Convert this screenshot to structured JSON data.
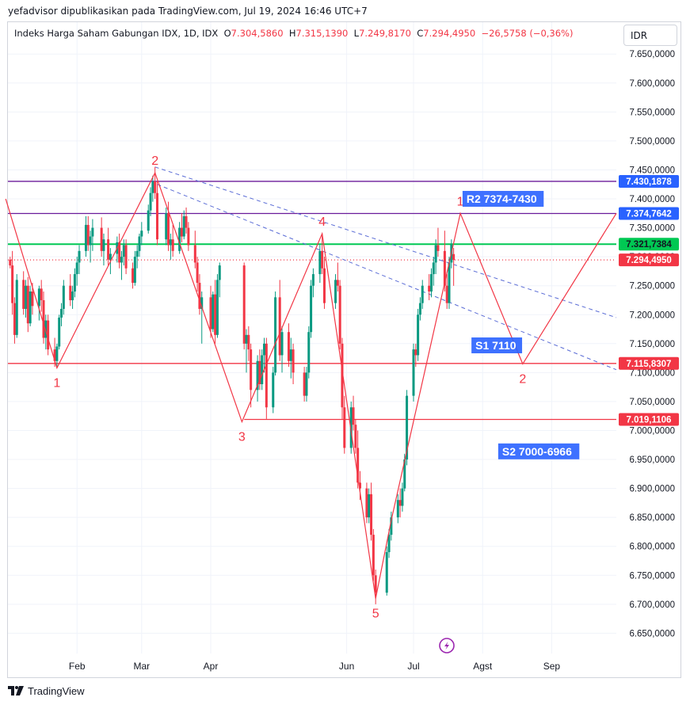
{
  "publisher_line": "yefadvisor dipublikasikan pada TradingView.com, Jul 19, 2024 16:46 UTC+7",
  "legend": {
    "title": "Indeks Harga Saham Gabungan IDX, 1D, IDX",
    "o_label": "O",
    "o_value": "7.304,5860",
    "h_label": "H",
    "h_value": "7.315,1390",
    "l_label": "L",
    "l_value": "7.249,8170",
    "c_label": "C",
    "c_value": "7.294,4950",
    "change": "−26,5758 (−0,36%)"
  },
  "currency_button": "IDR",
  "footer_brand": "TradingView",
  "colors": {
    "up": "#089981",
    "down": "#f23645",
    "wave": "#f23645",
    "resistance": "#2962ff",
    "purple": "#6a1b9a",
    "support_green": "#00c853",
    "support_red": "#f23645",
    "dashed_trend": "#5b6dd6"
  },
  "chart_data": {
    "type": "candlestick",
    "title": "Indeks Harga Saham Gabungan IDX, 1D, IDX",
    "xlabel": "",
    "ylabel": "",
    "x_ticks": [
      "Feb",
      "Mar",
      "Apr",
      "Jun",
      "Jul",
      "Agst",
      "Sep"
    ],
    "y_ticks": [
      "7.650,0000",
      "7.600,0000",
      "7.550,0000",
      "7.500,0000",
      "7.450,0000",
      "7.400,0000",
      "7.350,0000",
      "7.300,0000",
      "7.250,0000",
      "7.200,0000",
      "7.150,0000",
      "7.100,0000",
      "7.050,0000",
      "7.000,0000",
      "6.950,0000",
      "6.900,0000",
      "6.850,0000",
      "6.800,0000",
      "6.750,0000",
      "6.700,0000",
      "6.650,0000"
    ],
    "ylim": [
      6615,
      7705
    ],
    "x_range": [
      "2024-01-01",
      "2024-09-30"
    ],
    "grid": true,
    "candles": [
      {
        "d": "2024-01-02",
        "o": 7295,
        "h": 7300,
        "l": 7280,
        "c": 7285
      },
      {
        "d": "2024-01-03",
        "o": 7285,
        "h": 7310,
        "l": 7200,
        "c": 7220
      },
      {
        "d": "2024-01-04",
        "o": 7220,
        "h": 7230,
        "l": 7150,
        "c": 7165
      },
      {
        "d": "2024-01-05",
        "o": 7165,
        "h": 7270,
        "l": 7160,
        "c": 7260
      },
      {
        "d": "2024-01-08",
        "o": 7260,
        "h": 7275,
        "l": 7200,
        "c": 7210
      },
      {
        "d": "2024-01-09",
        "o": 7210,
        "h": 7260,
        "l": 7195,
        "c": 7250
      },
      {
        "d": "2024-01-10",
        "o": 7250,
        "h": 7265,
        "l": 7170,
        "c": 7185
      },
      {
        "d": "2024-01-11",
        "o": 7185,
        "h": 7250,
        "l": 7180,
        "c": 7240
      },
      {
        "d": "2024-01-12",
        "o": 7240,
        "h": 7255,
        "l": 7200,
        "c": 7215
      },
      {
        "d": "2024-01-15",
        "o": 7215,
        "h": 7250,
        "l": 7190,
        "c": 7245
      },
      {
        "d": "2024-01-16",
        "o": 7245,
        "h": 7260,
        "l": 7205,
        "c": 7225
      },
      {
        "d": "2024-01-17",
        "o": 7225,
        "h": 7240,
        "l": 7150,
        "c": 7160
      },
      {
        "d": "2024-01-18",
        "o": 7160,
        "h": 7200,
        "l": 7140,
        "c": 7190
      },
      {
        "d": "2024-01-19",
        "o": 7190,
        "h": 7200,
        "l": 7130,
        "c": 7140
      },
      {
        "d": "2024-01-22",
        "o": 7140,
        "h": 7160,
        "l": 7110,
        "c": 7120
      },
      {
        "d": "2024-01-23",
        "o": 7120,
        "h": 7150,
        "l": 7108,
        "c": 7145
      },
      {
        "d": "2024-01-24",
        "o": 7145,
        "h": 7200,
        "l": 7140,
        "c": 7195
      },
      {
        "d": "2024-01-25",
        "o": 7195,
        "h": 7220,
        "l": 7180,
        "c": 7210
      },
      {
        "d": "2024-01-26",
        "o": 7210,
        "h": 7260,
        "l": 7200,
        "c": 7250
      },
      {
        "d": "2024-01-29",
        "o": 7250,
        "h": 7270,
        "l": 7215,
        "c": 7225
      },
      {
        "d": "2024-01-30",
        "o": 7225,
        "h": 7250,
        "l": 7210,
        "c": 7240
      },
      {
        "d": "2024-01-31",
        "o": 7240,
        "h": 7280,
        "l": 7230,
        "c": 7270
      },
      {
        "d": "2024-02-01",
        "o": 7270,
        "h": 7300,
        "l": 7250,
        "c": 7290
      },
      {
        "d": "2024-02-02",
        "o": 7290,
        "h": 7320,
        "l": 7270,
        "c": 7310
      },
      {
        "d": "2024-02-05",
        "o": 7310,
        "h": 7370,
        "l": 7300,
        "c": 7355
      },
      {
        "d": "2024-02-06",
        "o": 7355,
        "h": 7370,
        "l": 7310,
        "c": 7320
      },
      {
        "d": "2024-02-07",
        "o": 7320,
        "h": 7345,
        "l": 7290,
        "c": 7335
      },
      {
        "d": "2024-02-08",
        "o": 7335,
        "h": 7365,
        "l": 7310,
        "c": 7350
      },
      {
        "d": "2024-02-12",
        "o": 7350,
        "h": 7368,
        "l": 7300,
        "c": 7310
      },
      {
        "d": "2024-02-13",
        "o": 7310,
        "h": 7340,
        "l": 7285,
        "c": 7330
      },
      {
        "d": "2024-02-15",
        "o": 7330,
        "h": 7350,
        "l": 7285,
        "c": 7295
      },
      {
        "d": "2024-02-16",
        "o": 7295,
        "h": 7315,
        "l": 7270,
        "c": 7305
      },
      {
        "d": "2024-02-19",
        "o": 7305,
        "h": 7335,
        "l": 7290,
        "c": 7325
      },
      {
        "d": "2024-02-20",
        "o": 7325,
        "h": 7340,
        "l": 7280,
        "c": 7290
      },
      {
        "d": "2024-02-21",
        "o": 7290,
        "h": 7310,
        "l": 7260,
        "c": 7300
      },
      {
        "d": "2024-02-22",
        "o": 7300,
        "h": 7330,
        "l": 7285,
        "c": 7320
      },
      {
        "d": "2024-02-23",
        "o": 7320,
        "h": 7330,
        "l": 7270,
        "c": 7280
      },
      {
        "d": "2024-02-26",
        "o": 7280,
        "h": 7290,
        "l": 7245,
        "c": 7255
      },
      {
        "d": "2024-02-27",
        "o": 7255,
        "h": 7310,
        "l": 7250,
        "c": 7300
      },
      {
        "d": "2024-02-28",
        "o": 7300,
        "h": 7320,
        "l": 7280,
        "c": 7310
      },
      {
        "d": "2024-02-29",
        "o": 7310,
        "h": 7340,
        "l": 7300,
        "c": 7335
      },
      {
        "d": "2024-03-01",
        "o": 7335,
        "h": 7360,
        "l": 7320,
        "c": 7345
      },
      {
        "d": "2024-03-04",
        "o": 7345,
        "h": 7390,
        "l": 7340,
        "c": 7380
      },
      {
        "d": "2024-03-05",
        "o": 7380,
        "h": 7420,
        "l": 7370,
        "c": 7410
      },
      {
        "d": "2024-03-06",
        "o": 7410,
        "h": 7440,
        "l": 7395,
        "c": 7430
      },
      {
        "d": "2024-03-07",
        "o": 7430,
        "h": 7455,
        "l": 7400,
        "c": 7410
      },
      {
        "d": "2024-03-08",
        "o": 7410,
        "h": 7430,
        "l": 7320,
        "c": 7330
      },
      {
        "d": "2024-03-12",
        "o": 7330,
        "h": 7385,
        "l": 7320,
        "c": 7375
      },
      {
        "d": "2024-03-13",
        "o": 7375,
        "h": 7395,
        "l": 7310,
        "c": 7320
      },
      {
        "d": "2024-03-14",
        "o": 7320,
        "h": 7340,
        "l": 7295,
        "c": 7330
      },
      {
        "d": "2024-03-15",
        "o": 7330,
        "h": 7355,
        "l": 7300,
        "c": 7310
      },
      {
        "d": "2024-03-18",
        "o": 7310,
        "h": 7360,
        "l": 7305,
        "c": 7350
      },
      {
        "d": "2024-03-19",
        "o": 7350,
        "h": 7375,
        "l": 7325,
        "c": 7335
      },
      {
        "d": "2024-03-20",
        "o": 7335,
        "h": 7380,
        "l": 7330,
        "c": 7370
      },
      {
        "d": "2024-03-21",
        "o": 7370,
        "h": 7385,
        "l": 7340,
        "c": 7350
      },
      {
        "d": "2024-03-22",
        "o": 7350,
        "h": 7360,
        "l": 7310,
        "c": 7320
      },
      {
        "d": "2024-03-25",
        "o": 7320,
        "h": 7345,
        "l": 7280,
        "c": 7290
      },
      {
        "d": "2024-03-26",
        "o": 7290,
        "h": 7300,
        "l": 7240,
        "c": 7255
      },
      {
        "d": "2024-03-27",
        "o": 7255,
        "h": 7270,
        "l": 7200,
        "c": 7210
      },
      {
        "d": "2024-03-28",
        "o": 7210,
        "h": 7240,
        "l": 7150,
        "c": 7230
      },
      {
        "d": "2024-04-01",
        "o": 7230,
        "h": 7250,
        "l": 7160,
        "c": 7175
      },
      {
        "d": "2024-04-02",
        "o": 7175,
        "h": 7240,
        "l": 7170,
        "c": 7235
      },
      {
        "d": "2024-04-03",
        "o": 7235,
        "h": 7260,
        "l": 7150,
        "c": 7165
      },
      {
        "d": "2024-04-04",
        "o": 7165,
        "h": 7270,
        "l": 7160,
        "c": 7260
      },
      {
        "d": "2024-04-05",
        "o": 7260,
        "h": 7290,
        "l": 7230,
        "c": 7285
      },
      {
        "d": "2024-04-16",
        "o": 7285,
        "h": 7290,
        "l": 7140,
        "c": 7150
      },
      {
        "d": "2024-04-17",
        "o": 7150,
        "h": 7175,
        "l": 7100,
        "c": 7165
      },
      {
        "d": "2024-04-18",
        "o": 7165,
        "h": 7180,
        "l": 7120,
        "c": 7140
      },
      {
        "d": "2024-04-19",
        "o": 7140,
        "h": 7150,
        "l": 7040,
        "c": 7070
      },
      {
        "d": "2024-04-22",
        "o": 7070,
        "h": 7130,
        "l": 7050,
        "c": 7120
      },
      {
        "d": "2024-04-23",
        "o": 7120,
        "h": 7140,
        "l": 7070,
        "c": 7080
      },
      {
        "d": "2024-04-24",
        "o": 7080,
        "h": 7140,
        "l": 7070,
        "c": 7130
      },
      {
        "d": "2024-04-25",
        "o": 7130,
        "h": 7160,
        "l": 7100,
        "c": 7150
      },
      {
        "d": "2024-04-26",
        "o": 7150,
        "h": 7160,
        "l": 7020,
        "c": 7040
      },
      {
        "d": "2024-04-29",
        "o": 7040,
        "h": 7110,
        "l": 7030,
        "c": 7100
      },
      {
        "d": "2024-04-30",
        "o": 7100,
        "h": 7240,
        "l": 7095,
        "c": 7230
      },
      {
        "d": "2024-05-02",
        "o": 7230,
        "h": 7260,
        "l": 7120,
        "c": 7130
      },
      {
        "d": "2024-05-03",
        "o": 7130,
        "h": 7180,
        "l": 7100,
        "c": 7170
      },
      {
        "d": "2024-05-06",
        "o": 7170,
        "h": 7185,
        "l": 7110,
        "c": 7120
      },
      {
        "d": "2024-05-07",
        "o": 7120,
        "h": 7160,
        "l": 7090,
        "c": 7140
      },
      {
        "d": "2024-05-08",
        "o": 7140,
        "h": 7150,
        "l": 7080,
        "c": 7100
      },
      {
        "d": "2024-05-13",
        "o": 7100,
        "h": 7110,
        "l": 7050,
        "c": 7060
      },
      {
        "d": "2024-05-14",
        "o": 7060,
        "h": 7110,
        "l": 7050,
        "c": 7100
      },
      {
        "d": "2024-05-15",
        "o": 7100,
        "h": 7180,
        "l": 7090,
        "c": 7170
      },
      {
        "d": "2024-05-16",
        "o": 7170,
        "h": 7260,
        "l": 7160,
        "c": 7250
      },
      {
        "d": "2024-05-17",
        "o": 7250,
        "h": 7280,
        "l": 7230,
        "c": 7270
      },
      {
        "d": "2024-05-20",
        "o": 7270,
        "h": 7320,
        "l": 7255,
        "c": 7310
      },
      {
        "d": "2024-05-21",
        "o": 7310,
        "h": 7340,
        "l": 7270,
        "c": 7280
      },
      {
        "d": "2024-05-22",
        "o": 7280,
        "h": 7300,
        "l": 7210,
        "c": 7220
      },
      {
        "d": "2024-05-27",
        "o": 7220,
        "h": 7270,
        "l": 7210,
        "c": 7260
      },
      {
        "d": "2024-05-28",
        "o": 7260,
        "h": 7290,
        "l": 7240,
        "c": 7250
      },
      {
        "d": "2024-05-29",
        "o": 7250,
        "h": 7260,
        "l": 7140,
        "c": 7150
      },
      {
        "d": "2024-05-30",
        "o": 7150,
        "h": 7160,
        "l": 7020,
        "c": 7040
      },
      {
        "d": "2024-05-31",
        "o": 7040,
        "h": 7060,
        "l": 6960,
        "c": 6970
      },
      {
        "d": "2024-06-03",
        "o": 6970,
        "h": 7050,
        "l": 6960,
        "c": 7040
      },
      {
        "d": "2024-06-04",
        "o": 7040,
        "h": 7060,
        "l": 7000,
        "c": 7010
      },
      {
        "d": "2024-06-05",
        "o": 7010,
        "h": 7020,
        "l": 6960,
        "c": 6970
      },
      {
        "d": "2024-06-06",
        "o": 6970,
        "h": 7000,
        "l": 6900,
        "c": 6910
      },
      {
        "d": "2024-06-07",
        "o": 6910,
        "h": 6930,
        "l": 6880,
        "c": 6900
      },
      {
        "d": "2024-06-10",
        "o": 6900,
        "h": 6910,
        "l": 6840,
        "c": 6850
      },
      {
        "d": "2024-06-11",
        "o": 6850,
        "h": 6900,
        "l": 6840,
        "c": 6890
      },
      {
        "d": "2024-06-12",
        "o": 6890,
        "h": 6910,
        "l": 6810,
        "c": 6820
      },
      {
        "d": "2024-06-13",
        "o": 6820,
        "h": 6830,
        "l": 6740,
        "c": 6750
      },
      {
        "d": "2024-06-14",
        "o": 6750,
        "h": 6760,
        "l": 6700,
        "c": 6720
      },
      {
        "d": "2024-06-19",
        "o": 6720,
        "h": 6800,
        "l": 6715,
        "c": 6790
      },
      {
        "d": "2024-06-20",
        "o": 6790,
        "h": 6830,
        "l": 6780,
        "c": 6820
      },
      {
        "d": "2024-06-21",
        "o": 6820,
        "h": 6860,
        "l": 6810,
        "c": 6850
      },
      {
        "d": "2024-06-24",
        "o": 6850,
        "h": 6890,
        "l": 6840,
        "c": 6880
      },
      {
        "d": "2024-06-25",
        "o": 6880,
        "h": 6900,
        "l": 6850,
        "c": 6870
      },
      {
        "d": "2024-06-26",
        "o": 6870,
        "h": 6910,
        "l": 6860,
        "c": 6900
      },
      {
        "d": "2024-06-27",
        "o": 6900,
        "h": 6960,
        "l": 6895,
        "c": 6950
      },
      {
        "d": "2024-06-28",
        "o": 6950,
        "h": 7070,
        "l": 6940,
        "c": 7060
      },
      {
        "d": "2024-07-01",
        "o": 7060,
        "h": 7150,
        "l": 7050,
        "c": 7140
      },
      {
        "d": "2024-07-02",
        "o": 7140,
        "h": 7150,
        "l": 7110,
        "c": 7130
      },
      {
        "d": "2024-07-03",
        "o": 7130,
        "h": 7210,
        "l": 7120,
        "c": 7200
      },
      {
        "d": "2024-07-04",
        "o": 7200,
        "h": 7230,
        "l": 7190,
        "c": 7220
      },
      {
        "d": "2024-07-05",
        "o": 7220,
        "h": 7260,
        "l": 7210,
        "c": 7250
      },
      {
        "d": "2024-07-08",
        "o": 7250,
        "h": 7270,
        "l": 7225,
        "c": 7240
      },
      {
        "d": "2024-07-09",
        "o": 7240,
        "h": 7280,
        "l": 7230,
        "c": 7270
      },
      {
        "d": "2024-07-10",
        "o": 7270,
        "h": 7300,
        "l": 7250,
        "c": 7290
      },
      {
        "d": "2024-07-11",
        "o": 7290,
        "h": 7330,
        "l": 7270,
        "c": 7320
      },
      {
        "d": "2024-07-12",
        "o": 7320,
        "h": 7350,
        "l": 7300,
        "c": 7310
      },
      {
        "d": "2024-07-15",
        "o": 7310,
        "h": 7345,
        "l": 7240,
        "c": 7250
      },
      {
        "d": "2024-07-16",
        "o": 7250,
        "h": 7270,
        "l": 7210,
        "c": 7220
      },
      {
        "d": "2024-07-17",
        "o": 7220,
        "h": 7300,
        "l": 7210,
        "c": 7290
      },
      {
        "d": "2024-07-18",
        "o": 7290,
        "h": 7330,
        "l": 7280,
        "c": 7321
      },
      {
        "d": "2024-07-19",
        "o": 7304.586,
        "h": 7315.139,
        "l": 7249.817,
        "c": 7294.495
      }
    ],
    "horizontal_levels": [
      {
        "value": 7430.1878,
        "label": "7.430,1878",
        "color": "#6a1b9a",
        "tag": "#2962ff"
      },
      {
        "value": 7374.7642,
        "label": "7.374,7642",
        "color": "#6a1b9a",
        "tag": "#2962ff"
      },
      {
        "value": 7321.7384,
        "label": "7.321,7384",
        "color": "#00c853",
        "tag": "#00c853"
      },
      {
        "value": 7294.495,
        "label": "7.294,4950",
        "color": "#f23645",
        "tag": "#f23645",
        "dotted": true
      },
      {
        "value": 7115.8307,
        "label": "7.115,8307",
        "color": "#f23645",
        "tag": "#f23645"
      },
      {
        "value": 7019.1106,
        "label": "7.019,1106",
        "color": "#f23645",
        "tag": "#f23645",
        "from": "2024-04-16"
      }
    ],
    "wave_path": [
      {
        "d": "2023-12-31",
        "v": 7400
      },
      {
        "d": "2024-01-23",
        "v": 7108,
        "label": "1",
        "label_pos": "below"
      },
      {
        "d": "2024-03-07",
        "v": 7445,
        "label": "2",
        "label_pos": "above"
      },
      {
        "d": "2024-04-15",
        "v": 7015,
        "label": "3",
        "label_pos": "below"
      },
      {
        "d": "2024-05-21",
        "v": 7340,
        "label": "4",
        "label_pos": "above"
      },
      {
        "d": "2024-06-14",
        "v": 6710,
        "label": "5",
        "label_pos": "below"
      },
      {
        "d": "2024-06-21",
        "v": 6845
      },
      {
        "d": "2024-07-22",
        "v": 7375,
        "label": "1",
        "label_pos": "above"
      },
      {
        "d": "2024-08-19",
        "v": 7115,
        "label": "2",
        "label_pos": "below"
      },
      {
        "d": "2024-09-30",
        "v": 7375
      }
    ],
    "trendlines": [
      {
        "d1": "2024-03-07",
        "v1": 7455,
        "d2": "2024-09-30",
        "v2": 7195
      },
      {
        "d1": "2024-03-08",
        "v1": 7425,
        "d2": "2024-09-30",
        "v2": 7105
      }
    ],
    "annotations": [
      {
        "text": "R2 7374-7430",
        "d": "2024-07-23",
        "v": 7400
      },
      {
        "text": "S1 7110",
        "d": "2024-07-27",
        "v": 7147
      },
      {
        "text": "S2 7000-6966",
        "d": "2024-08-08",
        "v": 6964
      }
    ]
  }
}
